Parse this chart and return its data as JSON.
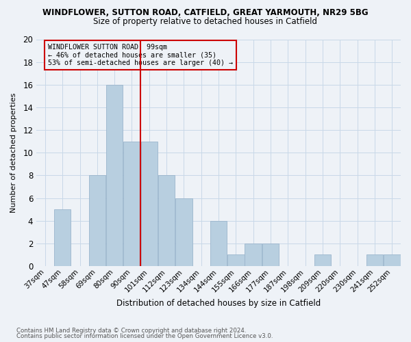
{
  "title": "WINDFLOWER, SUTTON ROAD, CATFIELD, GREAT YARMOUTH, NR29 5BG",
  "subtitle": "Size of property relative to detached houses in Catfield",
  "xlabel": "Distribution of detached houses by size in Catfield",
  "ylabel": "Number of detached properties",
  "categories": [
    "37sqm",
    "47sqm",
    "58sqm",
    "69sqm",
    "80sqm",
    "90sqm",
    "101sqm",
    "112sqm",
    "123sqm",
    "134sqm",
    "144sqm",
    "155sqm",
    "166sqm",
    "177sqm",
    "187sqm",
    "198sqm",
    "209sqm",
    "220sqm",
    "230sqm",
    "241sqm",
    "252sqm"
  ],
  "values": [
    0,
    5,
    0,
    8,
    16,
    11,
    11,
    8,
    6,
    0,
    4,
    1,
    2,
    2,
    0,
    0,
    1,
    0,
    0,
    1,
    1
  ],
  "bar_color": "#b8cfe0",
  "bar_edge_color": "#9ab5cc",
  "marker_label": "WINDFLOWER SUTTON ROAD: 99sqm",
  "annotation_line1": "← 46% of detached houses are smaller (35)",
  "annotation_line2": "53% of semi-detached houses are larger (40) →",
  "marker_color": "#cc0000",
  "box_edge_color": "#cc0000",
  "ylim": [
    0,
    20
  ],
  "yticks": [
    0,
    2,
    4,
    6,
    8,
    10,
    12,
    14,
    16,
    18,
    20
  ],
  "grid_color": "#c8d8e8",
  "bg_color": "#eef2f7",
  "footer_line1": "Contains HM Land Registry data © Crown copyright and database right 2024.",
  "footer_line2": "Contains public sector information licensed under the Open Government Licence v3.0."
}
